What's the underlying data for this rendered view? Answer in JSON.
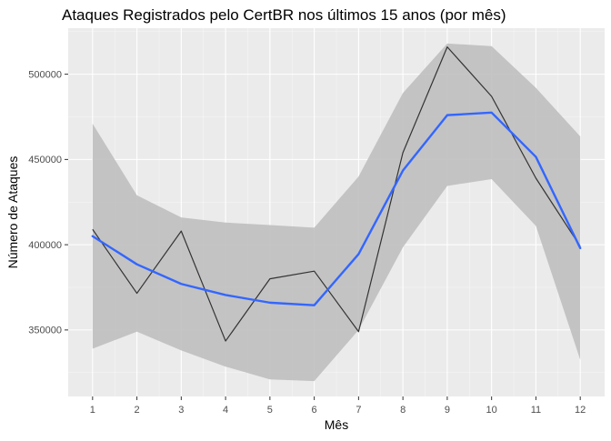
{
  "chart_data": {
    "type": "line",
    "title": "Ataques Registrados pelo CertBR nos últimos 15 anos (por mês)",
    "xlabel": "Mês",
    "ylabel": "Número de Ataques",
    "x": [
      1,
      2,
      3,
      4,
      5,
      6,
      7,
      8,
      9,
      10,
      11,
      12
    ],
    "x_tick_labels": [
      "1",
      "2",
      "3",
      "4",
      "5",
      "6",
      "7",
      "8",
      "9",
      "10",
      "11",
      "12"
    ],
    "y_ticks": [
      350000,
      400000,
      450000,
      500000
    ],
    "y_tick_labels": [
      "350000",
      "400000",
      "450000",
      "500000"
    ],
    "xlim": [
      0.45,
      12.55
    ],
    "ylim": [
      311000,
      527000
    ],
    "grid": true,
    "series": [
      {
        "kind": "raw",
        "values": [
          409000,
          371500,
          408000,
          343500,
          380000,
          384500,
          349000,
          454000,
          516000,
          487000,
          439000,
          399000
        ]
      },
      {
        "kind": "smooth",
        "values": [
          405000,
          388500,
          377000,
          370500,
          366000,
          364500,
          394500,
          443500,
          476000,
          477500,
          451500,
          398000
        ],
        "ci_upper": [
          471000,
          429000,
          416000,
          413000,
          411500,
          410000,
          440000,
          489000,
          518000,
          516500,
          492000,
          463500
        ],
        "ci_lower": [
          339000,
          349000,
          338000,
          328500,
          321000,
          320000,
          350000,
          398500,
          434500,
          438500,
          411000,
          332500
        ]
      }
    ],
    "colors": {
      "panel_background": "#ebebeb",
      "grid_major": "#ffffff",
      "confidence_band": "#bfbfbf",
      "raw_line": "#333333",
      "smooth_line": "#3366ff"
    }
  }
}
